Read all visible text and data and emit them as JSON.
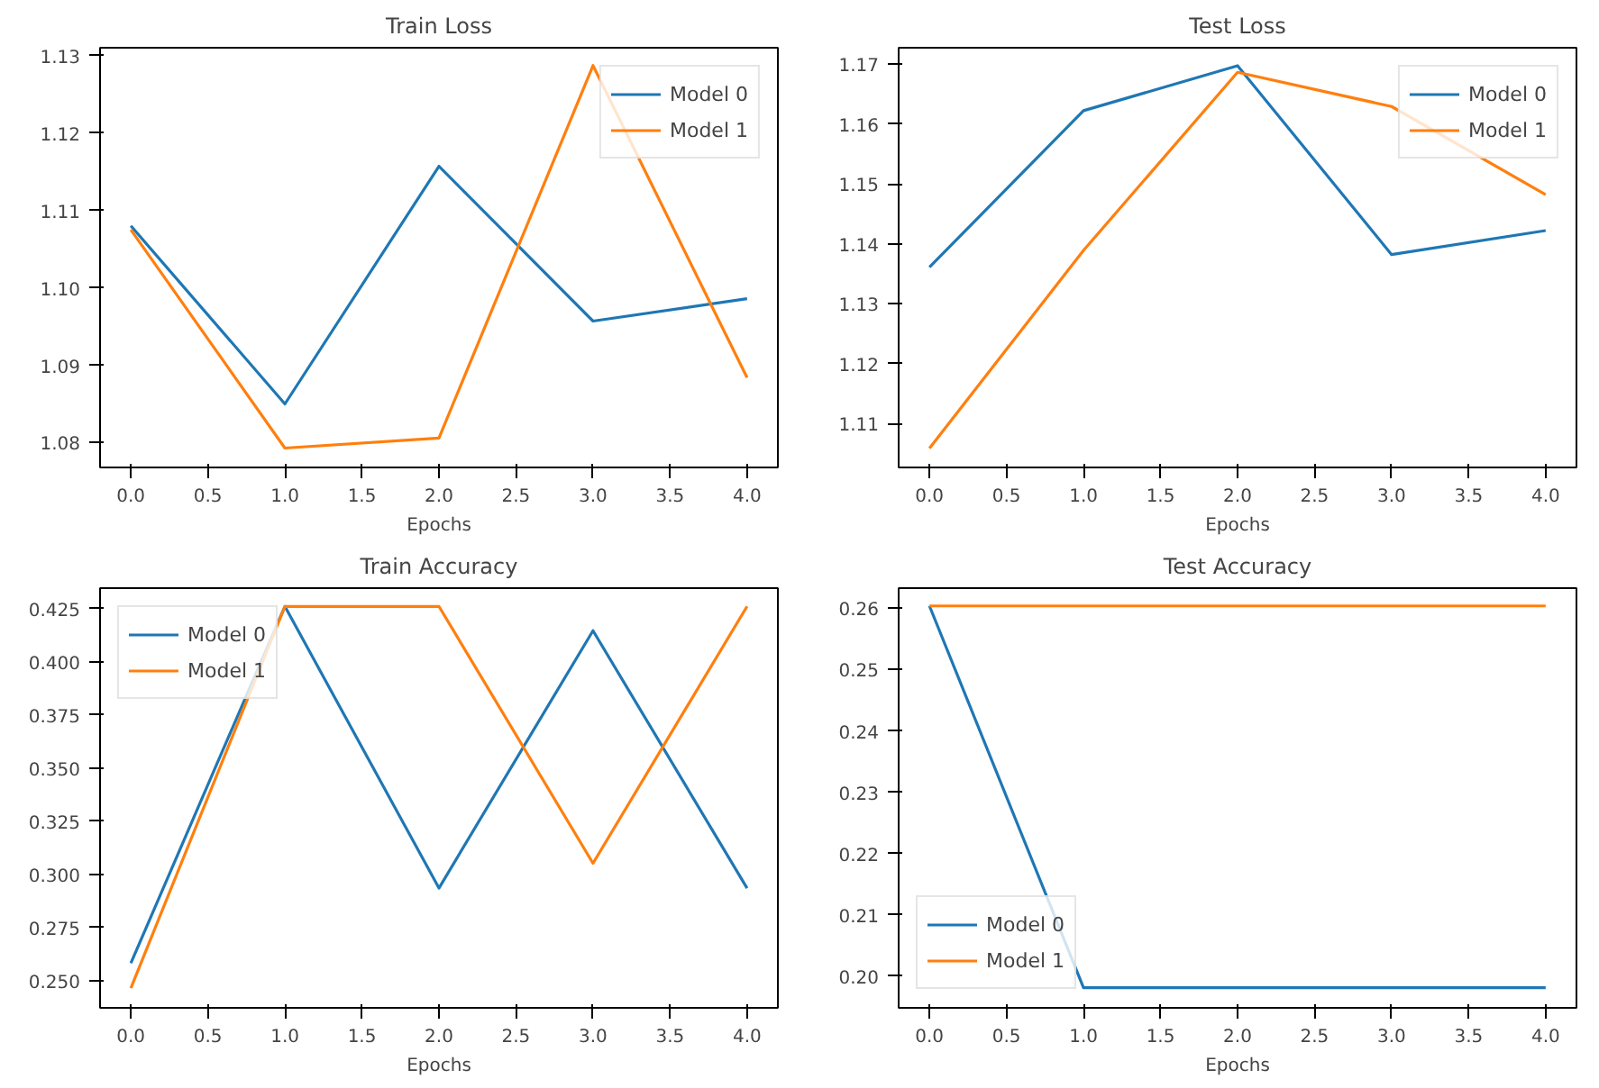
{
  "chart_data": [
    {
      "type": "line",
      "title": "Train Loss",
      "xlabel": "Epochs",
      "x": [
        0,
        1,
        2,
        3,
        4
      ],
      "xlim": [
        -0.2,
        4.2
      ],
      "xticks": [
        {
          "value": 0,
          "label": "0.0"
        },
        {
          "value": 0.5,
          "label": "0.5"
        },
        {
          "value": 1,
          "label": "1.0"
        },
        {
          "value": 1.5,
          "label": "1.5"
        },
        {
          "value": 2,
          "label": "2.0"
        },
        {
          "value": 2.5,
          "label": "2.5"
        },
        {
          "value": 3,
          "label": "3.0"
        },
        {
          "value": 3.5,
          "label": "3.5"
        },
        {
          "value": 4,
          "label": "4.0"
        }
      ],
      "ylim": [
        1.0768,
        1.131
      ],
      "yticks": [
        {
          "value": 1.08,
          "label": "1.08"
        },
        {
          "value": 1.09,
          "label": "1.09"
        },
        {
          "value": 1.1,
          "label": "1.10"
        },
        {
          "value": 1.11,
          "label": "1.11"
        },
        {
          "value": 1.12,
          "label": "1.12"
        },
        {
          "value": 1.13,
          "label": "1.13"
        }
      ],
      "grid": false,
      "legend": "top right",
      "line_style": "solid",
      "series": [
        {
          "name": "Model 0",
          "color": "#1f77b4",
          "values": [
            1.108,
            1.085,
            1.1157,
            1.0957,
            1.0986
          ]
        },
        {
          "name": "Model 1",
          "color": "#ff7f0e",
          "values": [
            1.1075,
            1.0793,
            1.0806,
            1.1287,
            1.0884
          ]
        }
      ]
    },
    {
      "type": "line",
      "title": "Test Loss",
      "xlabel": "Epochs",
      "x": [
        0,
        1,
        2,
        3,
        4
      ],
      "xlim": [
        -0.2,
        4.2
      ],
      "xticks": [
        {
          "value": 0,
          "label": "0.0"
        },
        {
          "value": 0.5,
          "label": "0.5"
        },
        {
          "value": 1,
          "label": "1.0"
        },
        {
          "value": 1.5,
          "label": "1.5"
        },
        {
          "value": 2,
          "label": "2.0"
        },
        {
          "value": 2.5,
          "label": "2.5"
        },
        {
          "value": 3,
          "label": "3.0"
        },
        {
          "value": 3.5,
          "label": "3.5"
        },
        {
          "value": 4,
          "label": "4.0"
        }
      ],
      "ylim": [
        1.1027,
        1.1727
      ],
      "yticks": [
        1.11,
        1.12,
        1.13,
        1.14,
        1.15,
        1.16,
        1.17
      ],
      "grid": false,
      "legend": "top right",
      "line_style": "solid",
      "series": [
        {
          "name": "Model 0",
          "color": "#1f77b4",
          "values": [
            1.1361,
            1.1622,
            1.1697,
            1.1382,
            1.1422
          ]
        },
        {
          "name": "Model 1",
          "color": "#ff7f0e",
          "values": [
            1.1059,
            1.1389,
            1.1686,
            1.1629,
            1.1482
          ]
        }
      ]
    },
    {
      "type": "line",
      "title": "Train Accuracy",
      "xlabel": "Epochs",
      "x": [
        0,
        1,
        2,
        3,
        4
      ],
      "xlim": [
        -0.2,
        4.2
      ],
      "xticks": [
        {
          "value": 0,
          "label": "0.0"
        },
        {
          "value": 0.5,
          "label": "0.5"
        },
        {
          "value": 1,
          "label": "1.0"
        },
        {
          "value": 1.5,
          "label": "1.5"
        },
        {
          "value": 2,
          "label": "2.0"
        },
        {
          "value": 2.5,
          "label": "2.5"
        },
        {
          "value": 3,
          "label": "3.0"
        },
        {
          "value": 3.5,
          "label": "3.5"
        },
        {
          "value": 4,
          "label": "4.0"
        }
      ],
      "ylim": [
        0.2372,
        0.4346
      ],
      "yticks": [
        {
          "value": 0.25,
          "label": "0.250"
        },
        0.275,
        {
          "value": 0.3,
          "label": "0.300"
        },
        0.325,
        {
          "value": 0.35,
          "label": "0.350"
        },
        0.375,
        {
          "value": 0.4,
          "label": "0.400"
        },
        0.425
      ],
      "grid": false,
      "legend": "top left",
      "line_style": "solid",
      "series": [
        {
          "name": "Model 0",
          "color": "#1f77b4",
          "values": [
            0.2582,
            0.426,
            0.2935,
            0.4146,
            0.2935
          ]
        },
        {
          "name": "Model 1",
          "color": "#ff7f0e",
          "values": [
            0.2465,
            0.426,
            0.426,
            0.3052,
            0.426
          ]
        }
      ]
    },
    {
      "type": "line",
      "title": "Test Accuracy",
      "xlabel": "Epochs",
      "x": [
        0,
        1,
        2,
        3,
        4
      ],
      "xlim": [
        -0.2,
        4.2
      ],
      "xticks": [
        {
          "value": 0,
          "label": "0.0"
        },
        {
          "value": 0.5,
          "label": "0.5"
        },
        {
          "value": 1,
          "label": "1.0"
        },
        {
          "value": 1.5,
          "label": "1.5"
        },
        {
          "value": 2,
          "label": "2.0"
        },
        {
          "value": 2.5,
          "label": "2.5"
        },
        {
          "value": 3,
          "label": "3.0"
        },
        {
          "value": 3.5,
          "label": "3.5"
        },
        {
          "value": 4,
          "label": "4.0"
        }
      ],
      "ylim": [
        0.1948,
        0.2633
      ],
      "yticks": [
        {
          "value": 0.2,
          "label": "0.20"
        },
        0.21,
        0.22,
        0.23,
        0.24,
        0.25,
        0.26
      ],
      "grid": false,
      "legend": "bottom left",
      "line_style": "solid",
      "series": [
        {
          "name": "Model 0",
          "color": "#1f77b4",
          "values": [
            0.2604,
            0.1981,
            0.1981,
            0.1981,
            0.1981
          ]
        },
        {
          "name": "Model 1",
          "color": "#ff7f0e",
          "values": [
            0.2604,
            0.2604,
            0.2604,
            0.2604,
            0.2604
          ]
        }
      ]
    }
  ]
}
